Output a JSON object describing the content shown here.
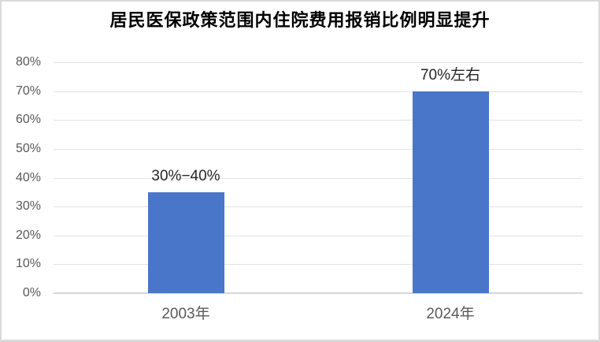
{
  "chart_data": {
    "type": "bar",
    "title": "居民医保政策范围内住院费用报销比例明显提升",
    "categories": [
      "2003年",
      "2024年"
    ],
    "values": [
      35,
      70
    ],
    "value_labels": [
      "30%−40%",
      "70%左右"
    ],
    "xlabel": "",
    "ylabel": "",
    "ylim": [
      0,
      80
    ],
    "ytick_step": 10,
    "ytick_labels": [
      "0%",
      "10%",
      "20%",
      "30%",
      "40%",
      "50%",
      "60%",
      "70%",
      "80%"
    ],
    "grid": true,
    "legend": false,
    "colors": {
      "bar": "#4a76c9",
      "gridline": "#e2e2e2",
      "axis_line": "#d6d6d6",
      "tick_label": "#595959",
      "value_label": "#262626",
      "title": "#000000",
      "frame_border": "#d9d9d9",
      "background": "#ffffff"
    }
  }
}
